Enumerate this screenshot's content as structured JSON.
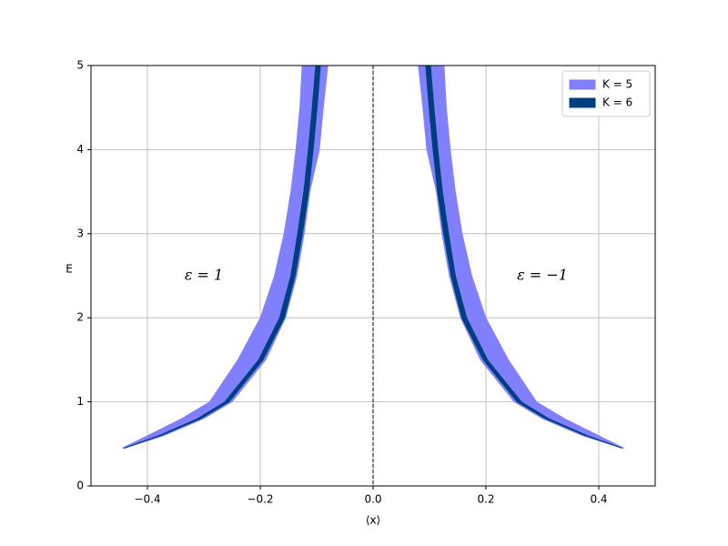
{
  "chart_data": {
    "type": "band",
    "xlabel": "⟨x⟩",
    "ylabel": "E",
    "xlim": [
      -0.5,
      0.5
    ],
    "ylim": [
      0,
      5
    ],
    "xticks": [
      {
        "value": -0.4,
        "label": "−0.4"
      },
      {
        "value": -0.2,
        "label": "−0.2"
      },
      {
        "value": 0,
        "label": "0.0"
      },
      {
        "value": 0.2,
        "label": "0.2"
      },
      {
        "value": 0.4,
        "label": "0.4"
      }
    ],
    "yticks": [
      0,
      1,
      2,
      3,
      4,
      5
    ],
    "grid": true,
    "legend": "upper right",
    "vlines": [
      0
    ],
    "annotations": [
      "ε = 1",
      "ε = −1"
    ],
    "y": [
      0.45,
      0.6,
      0.8,
      1,
      1.5,
      2,
      2.5,
      3,
      3.5,
      4,
      4.5,
      5
    ],
    "series": [
      {
        "name": "K = 5",
        "color": "#8080ff",
        "bands": [
          {
            "x_low": [
              -0.445,
              -0.4,
              -0.34,
              -0.29,
              -0.24,
              -0.2,
              -0.175,
              -0.158,
              -0.146,
              -0.137,
              -0.13,
              -0.126
            ],
            "x_high": [
              -0.44,
              -0.37,
              -0.3,
              -0.25,
              -0.19,
              -0.155,
              -0.135,
              -0.122,
              -0.112,
              -0.095,
              -0.088,
              -0.08
            ]
          },
          {
            "x_low": [
              0.44,
              0.37,
              0.3,
              0.25,
              0.19,
              0.155,
              0.135,
              0.122,
              0.112,
              0.095,
              0.088,
              0.08
            ],
            "x_high": [
              0.445,
              0.4,
              0.34,
              0.29,
              0.24,
              0.2,
              0.175,
              0.158,
              0.146,
              0.137,
              0.13,
              0.126
            ]
          }
        ]
      },
      {
        "name": "K = 6",
        "color": "#003f7f",
        "bands": [
          {
            "x_low": [
              -0.442,
              -0.38,
              -0.312,
              -0.263,
              -0.203,
              -0.166,
              -0.146,
              -0.134,
              -0.123,
              -0.115,
              -0.108,
              -0.102
            ],
            "x_high": [
              -0.44,
              -0.375,
              -0.305,
              -0.255,
              -0.195,
              -0.157,
              -0.138,
              -0.125,
              -0.114,
              -0.106,
              -0.099,
              -0.093
            ]
          },
          {
            "x_low": [
              0.44,
              0.375,
              0.305,
              0.255,
              0.195,
              0.157,
              0.138,
              0.125,
              0.114,
              0.106,
              0.099,
              0.093
            ],
            "x_high": [
              0.442,
              0.38,
              0.312,
              0.263,
              0.203,
              0.166,
              0.146,
              0.134,
              0.123,
              0.115,
              0.108,
              0.102
            ]
          }
        ]
      }
    ]
  }
}
